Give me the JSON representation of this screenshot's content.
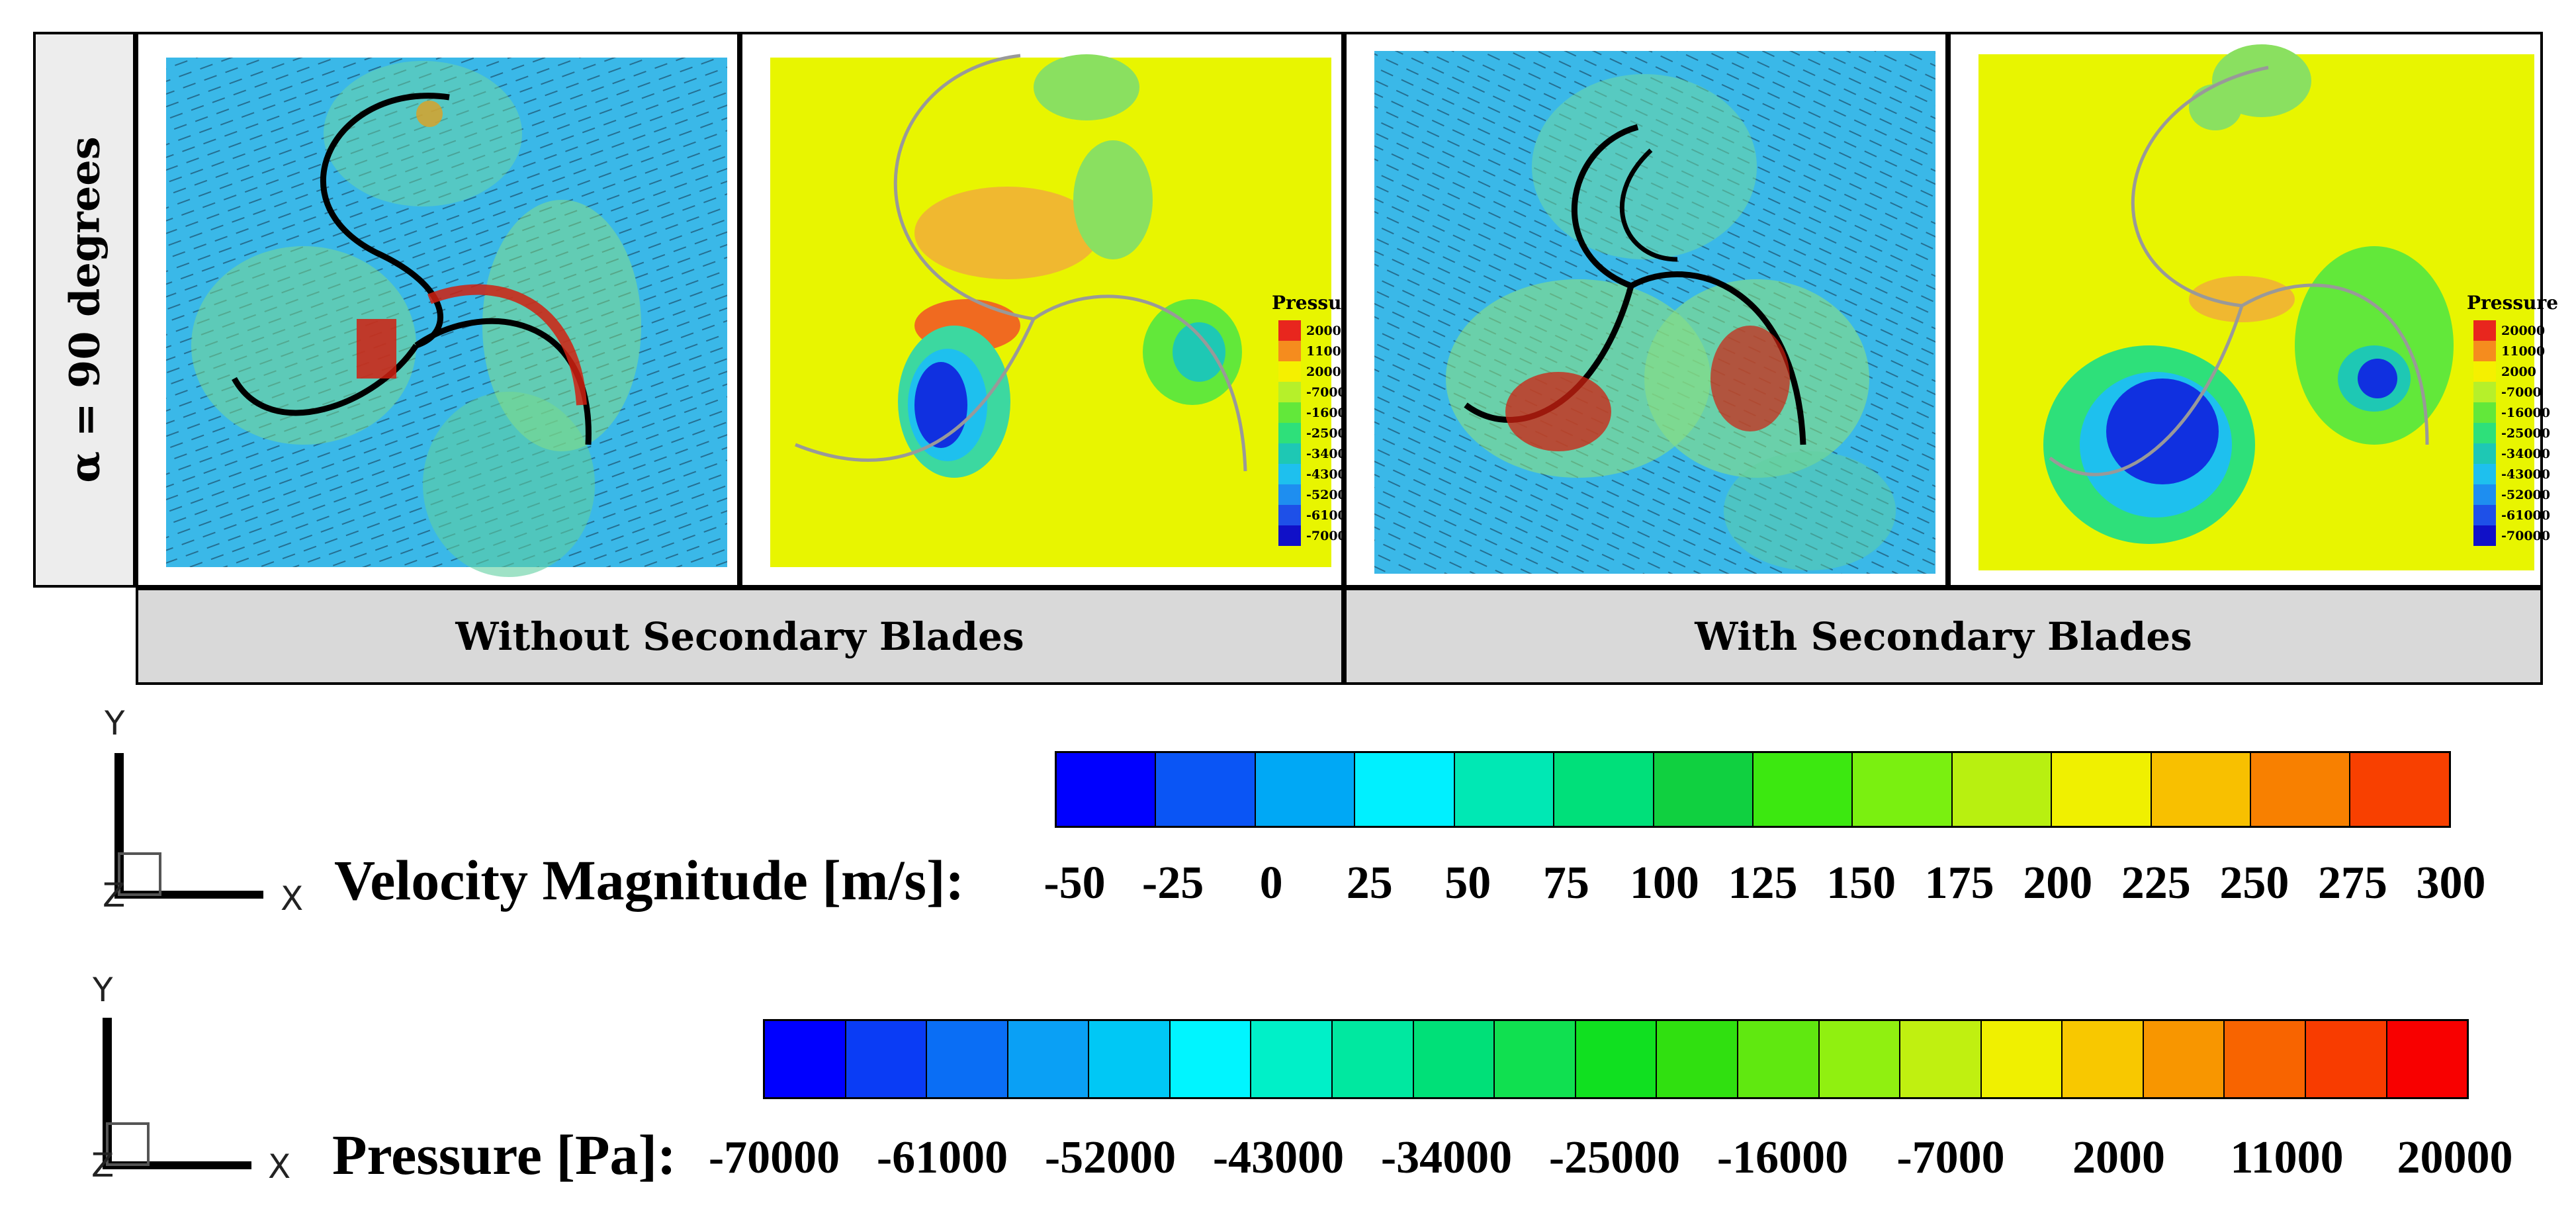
{
  "row_label": "α = 90 degrees",
  "columns": [
    {
      "caption": "Without Secondary Blades"
    },
    {
      "caption": "With Secondary Blades"
    }
  ],
  "inset_legend": {
    "title": "Pressure",
    "levels": [
      "20000",
      "11000",
      "2000",
      "-7000",
      "-16000",
      "-25000",
      "-34000",
      "-43000",
      "-52000",
      "-61000",
      "-70000"
    ],
    "colors": [
      "#e8261e",
      "#f58c1e",
      "#f5f000",
      "#b6f02a",
      "#62e83a",
      "#2ee07a",
      "#1ec8b4",
      "#1ec0ee",
      "#1e8ef0",
      "#1e50e8",
      "#1010c8"
    ]
  },
  "velocity_legend": {
    "title": "Velocity Magnitude [m/s]:",
    "ticks": [
      "-50",
      "-25",
      "0",
      "25",
      "50",
      "75",
      "100",
      "125",
      "150",
      "175",
      "200",
      "225",
      "250",
      "275",
      "300"
    ],
    "colors": [
      "#0000ff",
      "#0a55f5",
      "#00a8f5",
      "#00f0ff",
      "#00e8b4",
      "#00e07a",
      "#10d040",
      "#3ce810",
      "#7af010",
      "#b8f010",
      "#f0f000",
      "#f8c000",
      "#f88000",
      "#f84000"
    ]
  },
  "pressure_legend": {
    "title": "Pressure [Pa]:",
    "ticks": [
      "-70000",
      "-61000",
      "-52000",
      "-43000",
      "-34000",
      "-25000",
      "-16000",
      "-7000",
      "2000",
      "11000",
      "20000"
    ],
    "colors": [
      "#0000ff",
      "#0a3cf5",
      "#0a6ef5",
      "#0aa0f5",
      "#00c8f5",
      "#00f5ff",
      "#00f0c8",
      "#00e8a0",
      "#00e078",
      "#10e050",
      "#10e020",
      "#30e010",
      "#60e810",
      "#90f010",
      "#c0f010",
      "#f0f000",
      "#f8c800",
      "#f89600",
      "#f86400",
      "#f83c00",
      "#f80000"
    ]
  },
  "axis_triad": {
    "y": "Y",
    "x": "X",
    "z": "Z"
  },
  "colors": {
    "caption_bg": "#d9d9d9",
    "row_label_bg": "#ededed",
    "velocity_bg": "#3ab8e8",
    "pressure_bg": "#e8f500"
  }
}
